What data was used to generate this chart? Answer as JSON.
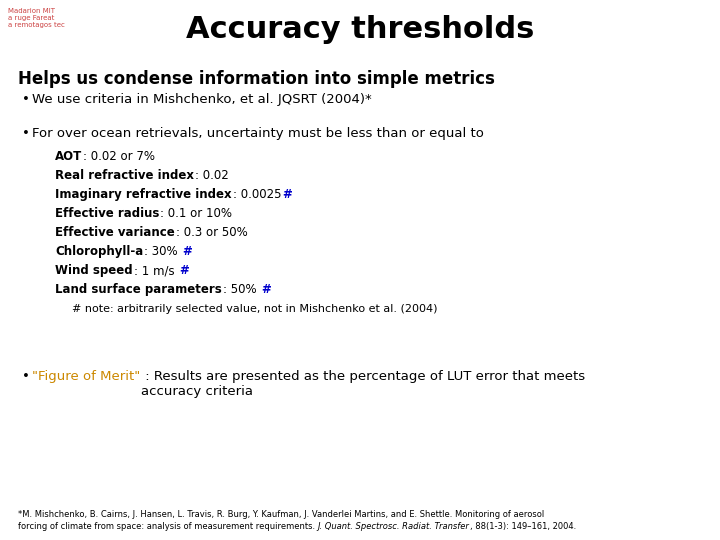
{
  "title": "Accuracy thresholds",
  "title_fontsize": 22,
  "background_color": "#ffffff",
  "logo_lines": [
    "Madarion MIT",
    "a ruge Fareat",
    "a remotagos tec"
  ],
  "logo_color": "#cc4444",
  "logo_fontsize": 5,
  "heading": "Helps us condense information into simple metrics",
  "heading_fontsize": 12,
  "bullet1": "We use criteria in Mishchenko, et al. JQSRT (2004)*",
  "bullet1_fontsize": 9.5,
  "bullet2_intro": "For over ocean retrievals, uncertainty must be less than or equal to",
  "bullet2_fontsize": 9.5,
  "criteria": [
    {
      "label": "AOT",
      "value": ": 0.02 or 7%",
      "star": false
    },
    {
      "label": "Real refractive index",
      "value": ": 0.02",
      "star": false
    },
    {
      "label": "Imaginary refractive index",
      "value": ": 0.0025",
      "star": true
    },
    {
      "label": "Effective radius",
      "value": ": 0.1 or 10%",
      "star": false
    },
    {
      "label": "Effective variance",
      "value": ": 0.3 or 50%",
      "star": false
    },
    {
      "label": "Chlorophyll-a",
      "value": ": 30% ",
      "star": true
    },
    {
      "label": "Wind speed",
      "value": ": 1 m/s ",
      "star": true
    },
    {
      "label": "Land surface parameters",
      "value": ": 50% ",
      "star": true
    }
  ],
  "criteria_fontsize": 8.5,
  "note": "  # note: arbitrarily selected value, not in Mishchenko et al. (2004)",
  "note_fontsize": 8,
  "bullet3_yellow": "\"Figure of Merit\"",
  "bullet3_rest": " : Results are presented as the percentage of LUT error that meets\naccuracy criteria",
  "bullet3_fontsize": 9.5,
  "footnote_line1": "*M. Mishchenko, B. Cairns, J. Hansen, L. Travis, R. Burg, Y. Kaufman, J. Vanderlei Martins, and E. Shettle. Monitoring of aerosol",
  "footnote_line2_plain": "forcing of climate from space: analysis of measurement requirements. ",
  "footnote_line2_italic": "J. Quant. Spectrosc. Radiat. Transfer",
  "footnote_line2_end": ", 88(1-3): 149–161, 2004.",
  "footnote_fontsize": 6,
  "star_color": "#0000cc",
  "yellow_color": "#cc8800",
  "text_color": "#000000"
}
